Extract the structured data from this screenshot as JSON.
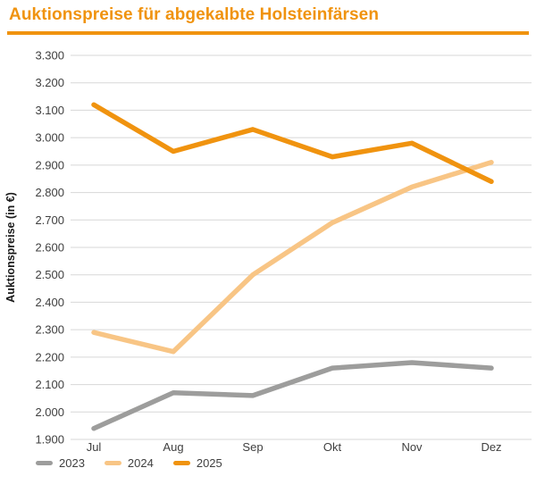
{
  "title": "Auktionspreise für abgekalbte Holsteinfärsen",
  "colors": {
    "accent": "#F0930F",
    "grid": "#D7D7D7",
    "axis_text": "#3F3F3F",
    "background": "#FFFFFF"
  },
  "chart_data": {
    "type": "line",
    "title": "Auktionspreise für abgekalbte Holsteinfärsen",
    "categories": [
      "Jul",
      "Aug",
      "Sep",
      "Okt",
      "Nov",
      "Dez"
    ],
    "series": [
      {
        "name": "2023",
        "color": "#9D9D9C",
        "values": [
          1940,
          2070,
          2060,
          2160,
          2180,
          2160
        ]
      },
      {
        "name": "2024",
        "color": "#F8C585",
        "values": [
          2290,
          2220,
          2500,
          2690,
          2820,
          2910
        ]
      },
      {
        "name": "2025",
        "color": "#F0930F",
        "values": [
          3120,
          2950,
          3030,
          2930,
          2980,
          2840
        ]
      }
    ],
    "xlabel": "",
    "ylabel": "Auktionspreise (in €)",
    "ylim": [
      1900,
      3300
    ],
    "ytick_step": 100,
    "ytick_format": "de-thousands",
    "grid": true,
    "legend_position": "bottom-left"
  }
}
